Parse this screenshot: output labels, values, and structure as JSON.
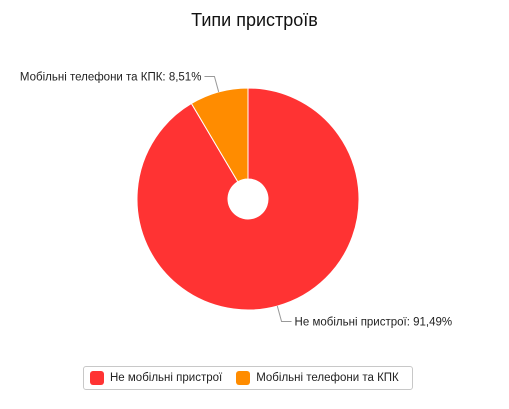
{
  "chart_data": {
    "type": "pie",
    "title": "Типи пристроїв",
    "slices": [
      {
        "name": "Не мобільні пристрої",
        "value": 91.49,
        "color": "#ff3333",
        "label": "Не мобільні пристрої: 91,49%"
      },
      {
        "name": "Мобільні телефони та КПК",
        "value": 8.51,
        "color": "#ff8c00",
        "label": "Мобільні телефони та КПК: 8,51%"
      }
    ],
    "legend_position": "bottom"
  }
}
